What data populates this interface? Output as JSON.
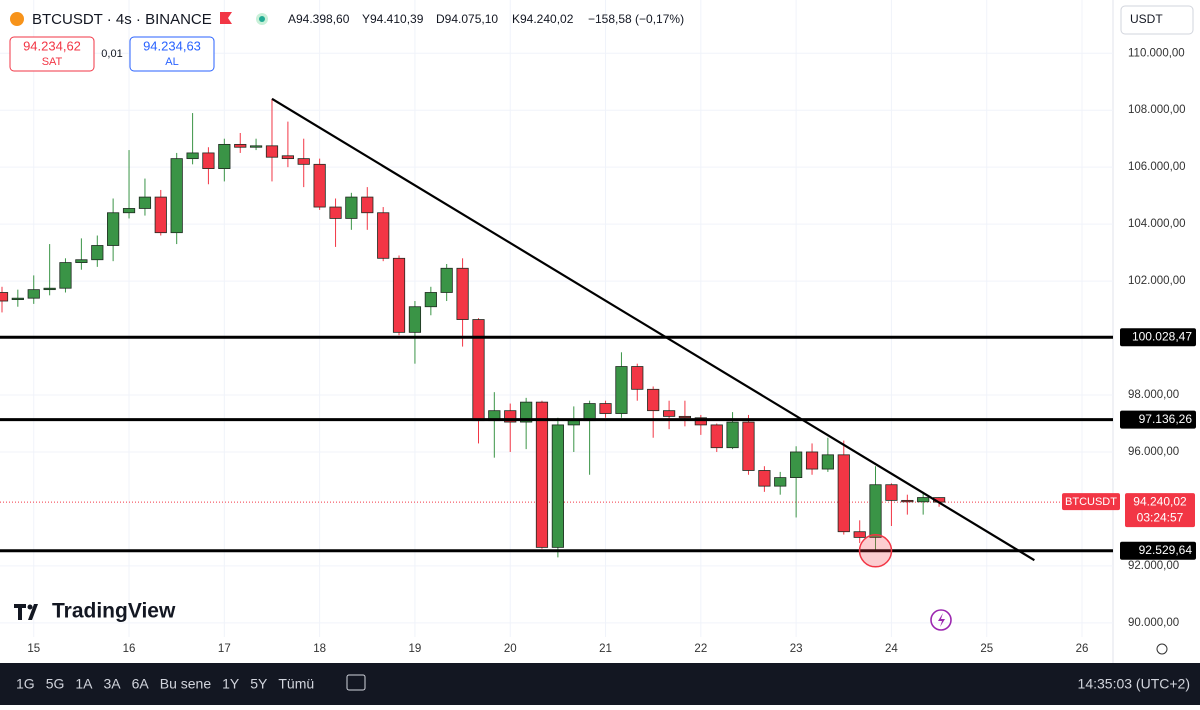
{
  "header": {
    "symbol": "BTCUSDT · 4s · BINANCE",
    "ohlc": [
      "A94.398,60",
      "Y94.410,39",
      "D94.075,10",
      "K94.240,02",
      "−158,58 (−0,17%)"
    ],
    "sell_price": "94.234,62",
    "sell_label": "SAT",
    "spread": "0,01",
    "buy_price": "94.234,63",
    "buy_label": "AL",
    "currency": "USDT"
  },
  "logo": "TradingView",
  "bottom_bar": {
    "ranges": [
      "1G",
      "5G",
      "1A",
      "3A",
      "6A",
      "Bu sene",
      "1Y",
      "5Y",
      "Tümü"
    ],
    "clock": "14:35:03 (UTC+2)"
  },
  "chart_data": {
    "type": "candlestick",
    "up_color": "#3a9446",
    "down_color": "#f23645",
    "grid": true,
    "x": [
      14.667,
      14.833,
      15,
      15.167,
      15.333,
      15.5,
      15.667,
      15.833,
      16,
      16.167,
      16.333,
      16.5,
      16.667,
      16.833,
      17,
      17.167,
      17.333,
      17.5,
      17.667,
      17.833,
      18,
      18.167,
      18.333,
      18.5,
      18.667,
      18.833,
      19,
      19.167,
      19.333,
      19.5,
      19.667,
      19.833,
      20,
      20.167,
      20.333,
      20.5,
      20.667,
      20.833,
      21,
      21.167,
      21.333,
      21.5,
      21.667,
      21.833,
      22,
      22.167,
      22.333,
      22.5,
      22.667,
      22.833,
      23,
      23.167,
      23.333,
      23.5,
      23.667,
      23.833,
      24,
      24.167,
      24.333,
      24.5
    ],
    "open": [
      101600,
      101350,
      101400,
      101700,
      101750,
      102650,
      102750,
      103250,
      104400,
      104550,
      104950,
      103700,
      106300,
      106500,
      105950,
      106800,
      106700,
      106750,
      106400,
      106300,
      106100,
      104600,
      104200,
      104950,
      104400,
      102800,
      100200,
      101100,
      101600,
      102450,
      100650,
      97100,
      97450,
      97050,
      97750,
      92650,
      96950,
      97100,
      97700,
      97350,
      99000,
      98200,
      97450,
      97250,
      97200,
      96950,
      96150,
      97050,
      95350,
      94800,
      95100,
      96000,
      95400,
      95900,
      93200,
      93000,
      94850,
      94300,
      94250,
      94398.6
    ],
    "high": [
      101800,
      101700,
      102200,
      103300,
      102800,
      103500,
      103600,
      104900,
      106600,
      105600,
      105200,
      106500,
      107900,
      106700,
      107000,
      107200,
      107000,
      108400,
      107600,
      107000,
      106300,
      104900,
      105100,
      105300,
      104600,
      102900,
      101300,
      101800,
      102600,
      102800,
      100700,
      98100,
      97700,
      97900,
      97800,
      97200,
      97600,
      97800,
      97800,
      99500,
      99100,
      98300,
      97800,
      97800,
      97300,
      97000,
      97400,
      97300,
      95500,
      95300,
      96200,
      96300,
      96500,
      96400,
      93600,
      95500,
      94900,
      94500,
      94600,
      94410.39
    ],
    "low": [
      100900,
      101100,
      101200,
      101500,
      101600,
      102400,
      102500,
      102700,
      104200,
      104300,
      103600,
      103300,
      106100,
      105400,
      105500,
      106500,
      106600,
      105500,
      106000,
      105300,
      104500,
      103200,
      103800,
      103800,
      102700,
      100100,
      99100,
      100800,
      101300,
      99700,
      96300,
      95800,
      96000,
      96100,
      92600,
      92300,
      96000,
      95200,
      97200,
      97200,
      97800,
      96500,
      96800,
      96900,
      96600,
      96000,
      96100,
      95200,
      94600,
      94500,
      93700,
      95200,
      95300,
      93100,
      92800,
      92550,
      93400,
      93800,
      93800,
      94075.1
    ],
    "close": [
      101300,
      101400,
      101700,
      101750,
      102650,
      102750,
      103250,
      104400,
      104550,
      104950,
      103700,
      106300,
      106500,
      105950,
      106800,
      106700,
      106750,
      106350,
      106300,
      106100,
      104600,
      104200,
      104950,
      104400,
      102800,
      100200,
      101100,
      101600,
      102450,
      100650,
      97100,
      97450,
      97050,
      97750,
      92650,
      96950,
      97100,
      97700,
      97350,
      99000,
      98200,
      97450,
      97250,
      97200,
      96950,
      96150,
      97050,
      95350,
      94800,
      95100,
      96000,
      95400,
      95900,
      93200,
      93000,
      94850,
      94300,
      94250,
      94400,
      94240.02
    ],
    "xlim": [
      14.646,
      26.325
    ],
    "xticks": [
      15,
      16,
      17,
      18,
      19,
      20,
      21,
      22,
      23,
      24,
      25,
      26
    ],
    "ylim": [
      88590,
      111870
    ],
    "yticks": [
      {
        "value": 110000,
        "label": "110.000,00"
      },
      {
        "value": 108000,
        "label": "108.000,00"
      },
      {
        "value": 106000,
        "label": "106.000,00"
      },
      {
        "value": 104000,
        "label": "104.000,00"
      },
      {
        "value": 102000,
        "label": "102.000,00"
      },
      {
        "value": 98000,
        "label": "98.000,00"
      },
      {
        "value": 96000,
        "label": "96.000,00"
      },
      {
        "value": 92000,
        "label": "92.000,00"
      },
      {
        "value": 90000,
        "label": "90.000,00"
      }
    ],
    "levels": [
      {
        "value": 100028.47,
        "label": "100.028,47"
      },
      {
        "value": 97136.26,
        "label": "97.136,26"
      },
      {
        "value": 92529.64,
        "label": "92.529,64"
      }
    ],
    "trendline": {
      "x": [
        17.5,
        25.5
      ],
      "y": [
        108400,
        92200
      ]
    },
    "last_price": {
      "value": 94240.02,
      "label": "94.240,02",
      "symbol": "BTCUSDT",
      "countdown": "03:24:57"
    }
  }
}
